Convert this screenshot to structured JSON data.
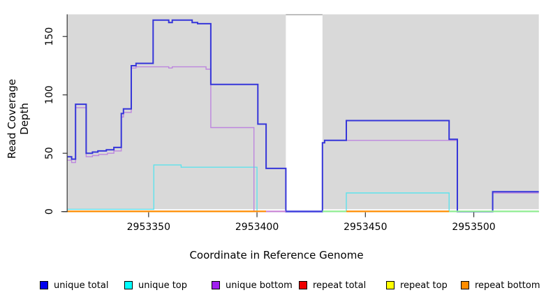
{
  "chart_data": {
    "type": "line",
    "subtype": "step-coverage",
    "title": "",
    "xlabel": "Coordinate in Reference Genome",
    "ylabel": "Read Coverage Depth",
    "xlim": [
      2953312.6,
      2953530
    ],
    "ylim": [
      0,
      169
    ],
    "x_ticks": [
      2953350,
      2953400,
      2953450,
      2953500
    ],
    "y_ticks": [
      0,
      50,
      100,
      150
    ],
    "grid": false,
    "plot_bg": "#d9d9d9",
    "axis_color": "#333333",
    "gap_region": {
      "from": 2953413.3,
      "to": 2953430.2,
      "fill": "#ffffff",
      "top_border": "#a8a8a8"
    },
    "series": [
      {
        "name": "repeat total",
        "color": "#dd0000",
        "width": 1.4,
        "steps": [
          [
            2953312.6,
            0
          ]
        ]
      },
      {
        "name": "repeat top",
        "color": "#eded00",
        "width": 1.4,
        "steps": [
          [
            2953312.6,
            0
          ]
        ]
      },
      {
        "name": "repeat bottom",
        "color": "#ff8c00",
        "width": 1.4,
        "steps": [
          [
            2953312.6,
            0
          ]
        ]
      },
      {
        "name": "unique top",
        "color": "#5fe2ec",
        "width": 1.4,
        "steps": [
          [
            2953312.6,
            2
          ],
          [
            2953352.4,
            40
          ],
          [
            2953365,
            38
          ],
          [
            2953400,
            0
          ],
          [
            2953441.2,
            16
          ],
          [
            2953488.6,
            0
          ]
        ]
      },
      {
        "name": "unique bottom",
        "color": "#bd86de",
        "width": 1.4,
        "steps": [
          [
            2953312.6,
            44
          ],
          [
            2953314.5,
            42
          ],
          [
            2953316.3,
            89
          ],
          [
            2953321.2,
            47
          ],
          [
            2953324.1,
            48
          ],
          [
            2953327,
            49
          ],
          [
            2953331,
            50
          ],
          [
            2953334,
            52
          ],
          [
            2953337.4,
            81
          ],
          [
            2953338.4,
            85
          ],
          [
            2953342,
            123
          ],
          [
            2953344.2,
            124
          ],
          [
            2953359.3,
            123
          ],
          [
            2953360.9,
            124
          ],
          [
            2953376.5,
            122
          ],
          [
            2953378.7,
            72
          ],
          [
            2953398.6,
            0
          ],
          [
            2953430.2,
            59
          ],
          [
            2953431.2,
            61
          ],
          [
            2953492.4,
            0
          ],
          [
            2953508.7,
            16
          ]
        ]
      },
      {
        "name": "unique total",
        "color": "#3636d9",
        "width": 2,
        "steps": [
          [
            2953312.6,
            47
          ],
          [
            2953314.5,
            45
          ],
          [
            2953316.3,
            92
          ],
          [
            2953321.2,
            50
          ],
          [
            2953324.1,
            51
          ],
          [
            2953326.6,
            52
          ],
          [
            2953330.5,
            53
          ],
          [
            2953334,
            55
          ],
          [
            2953337.4,
            84
          ],
          [
            2953338.4,
            88
          ],
          [
            2953342,
            125
          ],
          [
            2953344.2,
            127
          ],
          [
            2953352.1,
            164
          ],
          [
            2953359.3,
            162
          ],
          [
            2953360.9,
            164
          ],
          [
            2953370.1,
            162
          ],
          [
            2953372.6,
            161
          ],
          [
            2953378.7,
            109
          ],
          [
            2953400.4,
            75
          ],
          [
            2953404.2,
            37
          ],
          [
            2953413.3,
            0
          ],
          [
            2953430.2,
            59
          ],
          [
            2953431.2,
            61
          ],
          [
            2953441.2,
            78
          ],
          [
            2953488.6,
            62
          ],
          [
            2953492.4,
            0
          ],
          [
            2953508.7,
            17
          ]
        ]
      }
    ],
    "baseline_segments": [
      {
        "from": 2953312.6,
        "to": 2953404.2,
        "color": "#ff8c00",
        "width": 2.2
      },
      {
        "from": 2953404.2,
        "to": 2953413.3,
        "color": "#c97fd4",
        "width": 1.8
      },
      {
        "from": 2953413.3,
        "to": 2953430.2,
        "color": "#4040dd",
        "width": 2.2
      },
      {
        "from": 2953430.2,
        "to": 2953441.2,
        "color": "#90ee90",
        "width": 2.2
      },
      {
        "from": 2953441.2,
        "to": 2953488.6,
        "color": "#ff8c00",
        "width": 2.2
      },
      {
        "from": 2953488.6,
        "to": 2953530,
        "color": "#90ee90",
        "width": 2.2
      }
    ]
  },
  "axes": {
    "x_tick_labels": [
      "2953350",
      "2953400",
      "2953450",
      "2953500"
    ],
    "y_tick_labels": [
      "0",
      "50",
      "100",
      "150"
    ],
    "xlabel": "Coordinate in Reference Genome",
    "ylabel": "Read Coverage Depth"
  },
  "legend": {
    "items": [
      {
        "label": "unique total",
        "color": "#0000ee"
      },
      {
        "label": "unique top",
        "color": "#00ffff"
      },
      {
        "label": "unique bottom",
        "color": "#a020f0"
      },
      {
        "label": "repeat total",
        "color": "#ee0000"
      },
      {
        "label": "repeat top",
        "color": "#ffff00"
      },
      {
        "label": "repeat bottom",
        "color": "#ff8c00"
      }
    ]
  }
}
